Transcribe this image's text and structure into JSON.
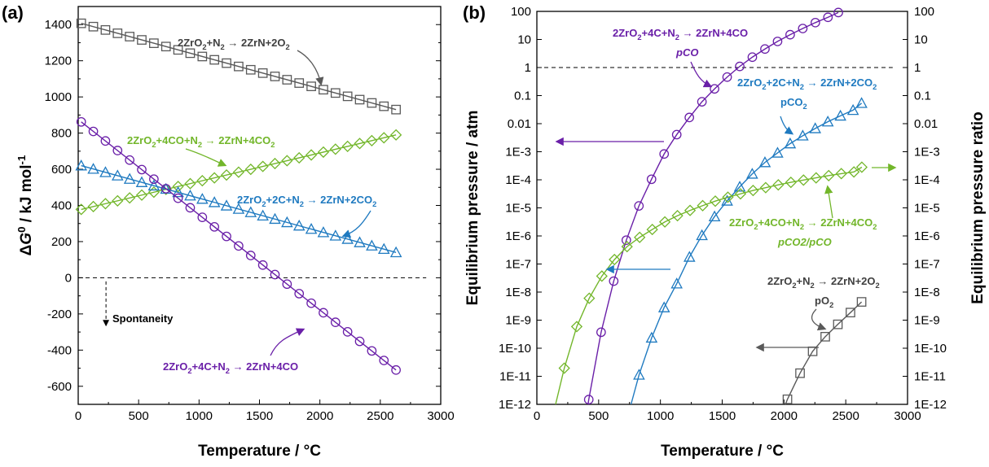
{
  "panels": {
    "a": "(a)",
    "b": "(b)"
  },
  "colors": {
    "gray": "#595959",
    "purple": "#6a1fa8",
    "blue": "#1f7ac0",
    "green": "#72b62a",
    "black": "#000000"
  },
  "chart_data": [
    {
      "type": "scatter",
      "panel_label": "(a)",
      "xlabel": "Temperature / °C",
      "ylabel": "ΔG0 / kJ mol-1",
      "xlim": [
        0,
        3000
      ],
      "ylim": [
        -700,
        1500
      ],
      "x_ticks": [
        0,
        500,
        1000,
        1500,
        2000,
        2500,
        3000
      ],
      "y_ticks": [
        -600,
        -400,
        -200,
        0,
        200,
        400,
        600,
        800,
        1000,
        1200,
        1400
      ],
      "reference_line": {
        "y": 0,
        "style": "dashed"
      },
      "annotations": [
        "Spontaneity"
      ],
      "series": [
        {
          "name": "2ZrO2+N2 → 2ZrN+2O2",
          "color": "#595959",
          "marker": "square",
          "x_range": [
            25,
            2630
          ],
          "y_at_start": 1407,
          "y_at_end": 930,
          "n_markers": 27
        },
        {
          "name": "2ZrO2+4CO+N2 → 2ZrN+4CO2",
          "color": "#72b62a",
          "marker": "diamond",
          "x_range": [
            25,
            2630
          ],
          "y_at_start": 378,
          "y_at_end": 790,
          "n_markers": 27
        },
        {
          "name": "2ZrO2+2C+N2 → 2ZrN+2CO2",
          "color": "#1f7ac0",
          "marker": "triangle",
          "x_range": [
            25,
            2630
          ],
          "y_at_start": 620,
          "y_at_end": 140,
          "n_markers": 27
        },
        {
          "name": "2ZrO2+4C+N2 → 2ZrN+4CO",
          "color": "#6a1fa8",
          "marker": "circle",
          "x_range": [
            25,
            2630
          ],
          "y_at_start": 862,
          "y_at_end": -510,
          "n_markers": 27
        }
      ]
    },
    {
      "type": "scatter",
      "panel_label": "(b)",
      "xlabel": "Temperature / °C",
      "ylabel_left": "Equilibrium pressure / atm",
      "ylabel_right": "Equilibrium pressure ratio",
      "yscale": "log",
      "xlim": [
        0,
        3000
      ],
      "ylim": [
        1e-12,
        100
      ],
      "x_ticks": [
        0,
        500,
        1000,
        1500,
        2000,
        2500,
        3000
      ],
      "y_tick_labels": [
        "1E-12",
        "1E-11",
        "1E-10",
        "1E-9",
        "1E-8",
        "1E-7",
        "1E-6",
        "1E-5",
        "1E-4",
        "1E-3",
        "0.01",
        "0.1",
        "1",
        "10",
        "100"
      ],
      "reference_line": {
        "y": 1,
        "style": "dashed"
      },
      "series": [
        {
          "name": "pCO",
          "reaction": "2ZrO2+4C+N2 → 2ZrN+4CO",
          "color": "#6a1fa8",
          "marker": "circle",
          "axis": "left",
          "x": [
            420,
            520,
            622,
            724,
            826,
            928,
            1030,
            1132,
            1234,
            1336,
            1438,
            1540,
            1642,
            1744,
            1846,
            1948,
            2050,
            2152,
            2254,
            2356,
            2440
          ],
          "y_log10": [
            -11.83,
            -9.43,
            -7.61,
            -6.15,
            -4.93,
            -3.98,
            -3.08,
            -2.39,
            -1.78,
            -1.22,
            -0.76,
            -0.34,
            0.04,
            0.37,
            0.66,
            0.93,
            1.17,
            1.39,
            1.6,
            1.79,
            1.96
          ]
        },
        {
          "name": "pCO2",
          "reaction": "2ZrO2+2C+N2 → 2ZrN+2CO2",
          "color": "#1f7ac0",
          "marker": "triangle",
          "axis": "left",
          "x": [
            827,
            929,
            1030,
            1132,
            1235,
            1336,
            1438,
            1540,
            1642,
            1743,
            1846,
            1948,
            2050,
            2152,
            2253,
            2355,
            2457,
            2559,
            2628
          ],
          "y_log10": [
            -10.95,
            -9.63,
            -8.55,
            -7.7,
            -6.75,
            -5.98,
            -5.31,
            -4.75,
            -4.25,
            -3.79,
            -3.38,
            -3.04,
            -2.71,
            -2.43,
            -2.17,
            -1.93,
            -1.72,
            -1.52,
            -1.27
          ]
        },
        {
          "name": "pCO2/pCO",
          "reaction": "2ZrO2+4CO+N2 → 2ZrN+4CO2",
          "color": "#72b62a",
          "marker": "diamond",
          "axis": "right",
          "x": [
            222,
            323,
            424,
            526,
            628,
            730,
            832,
            934,
            1036,
            1138,
            1240,
            1342,
            1444,
            1546,
            1648,
            1750,
            1852,
            1954,
            2056,
            2158,
            2260,
            2362,
            2464,
            2566,
            2630
          ],
          "y_log10": [
            -10.71,
            -9.23,
            -8.22,
            -7.43,
            -6.84,
            -6.38,
            -6.05,
            -5.77,
            -5.5,
            -5.28,
            -5.09,
            -4.92,
            -4.76,
            -4.62,
            -4.5,
            -4.38,
            -4.28,
            -4.18,
            -4.09,
            -4.01,
            -3.93,
            -3.85,
            -3.78,
            -3.72,
            -3.55
          ]
        },
        {
          "name": "pO2",
          "reaction": "2ZrO2+N2 → 2ZrN+2O2",
          "color": "#595959",
          "marker": "square",
          "axis": "left",
          "x": [
            2028,
            2130,
            2232,
            2334,
            2436,
            2538,
            2628
          ],
          "y_log10": [
            -11.82,
            -10.89,
            -10.11,
            -9.59,
            -9.15,
            -8.73,
            -8.35
          ]
        }
      ]
    }
  ],
  "labels_a": {
    "gray": "2ZrO2+N2 → 2ZrN+2O2",
    "green": "2ZrO2+4CO+N2 → 2ZrN+4CO2",
    "blue": "2ZrO2+2C+N2 → 2ZrN+2CO2",
    "purple": "2ZrO2+4C+N2 → 2ZrN+4CO",
    "spont": "Spontaneity"
  },
  "labels_b": {
    "purple_rx": "2ZrO2+4C+N2 → 2ZrN+4CO",
    "purple_p": "pCO",
    "blue_rx": "2ZrO2+2C+N2 → 2ZrN+2CO2",
    "blue_p": "pCO2",
    "green_rx": "2ZrO2+4CO+N2 → 2ZrN+4CO2",
    "green_p": "pCO2/pCO",
    "gray_rx": "2ZrO2+N2 → 2ZrN+2O2",
    "gray_p": "pO2"
  }
}
